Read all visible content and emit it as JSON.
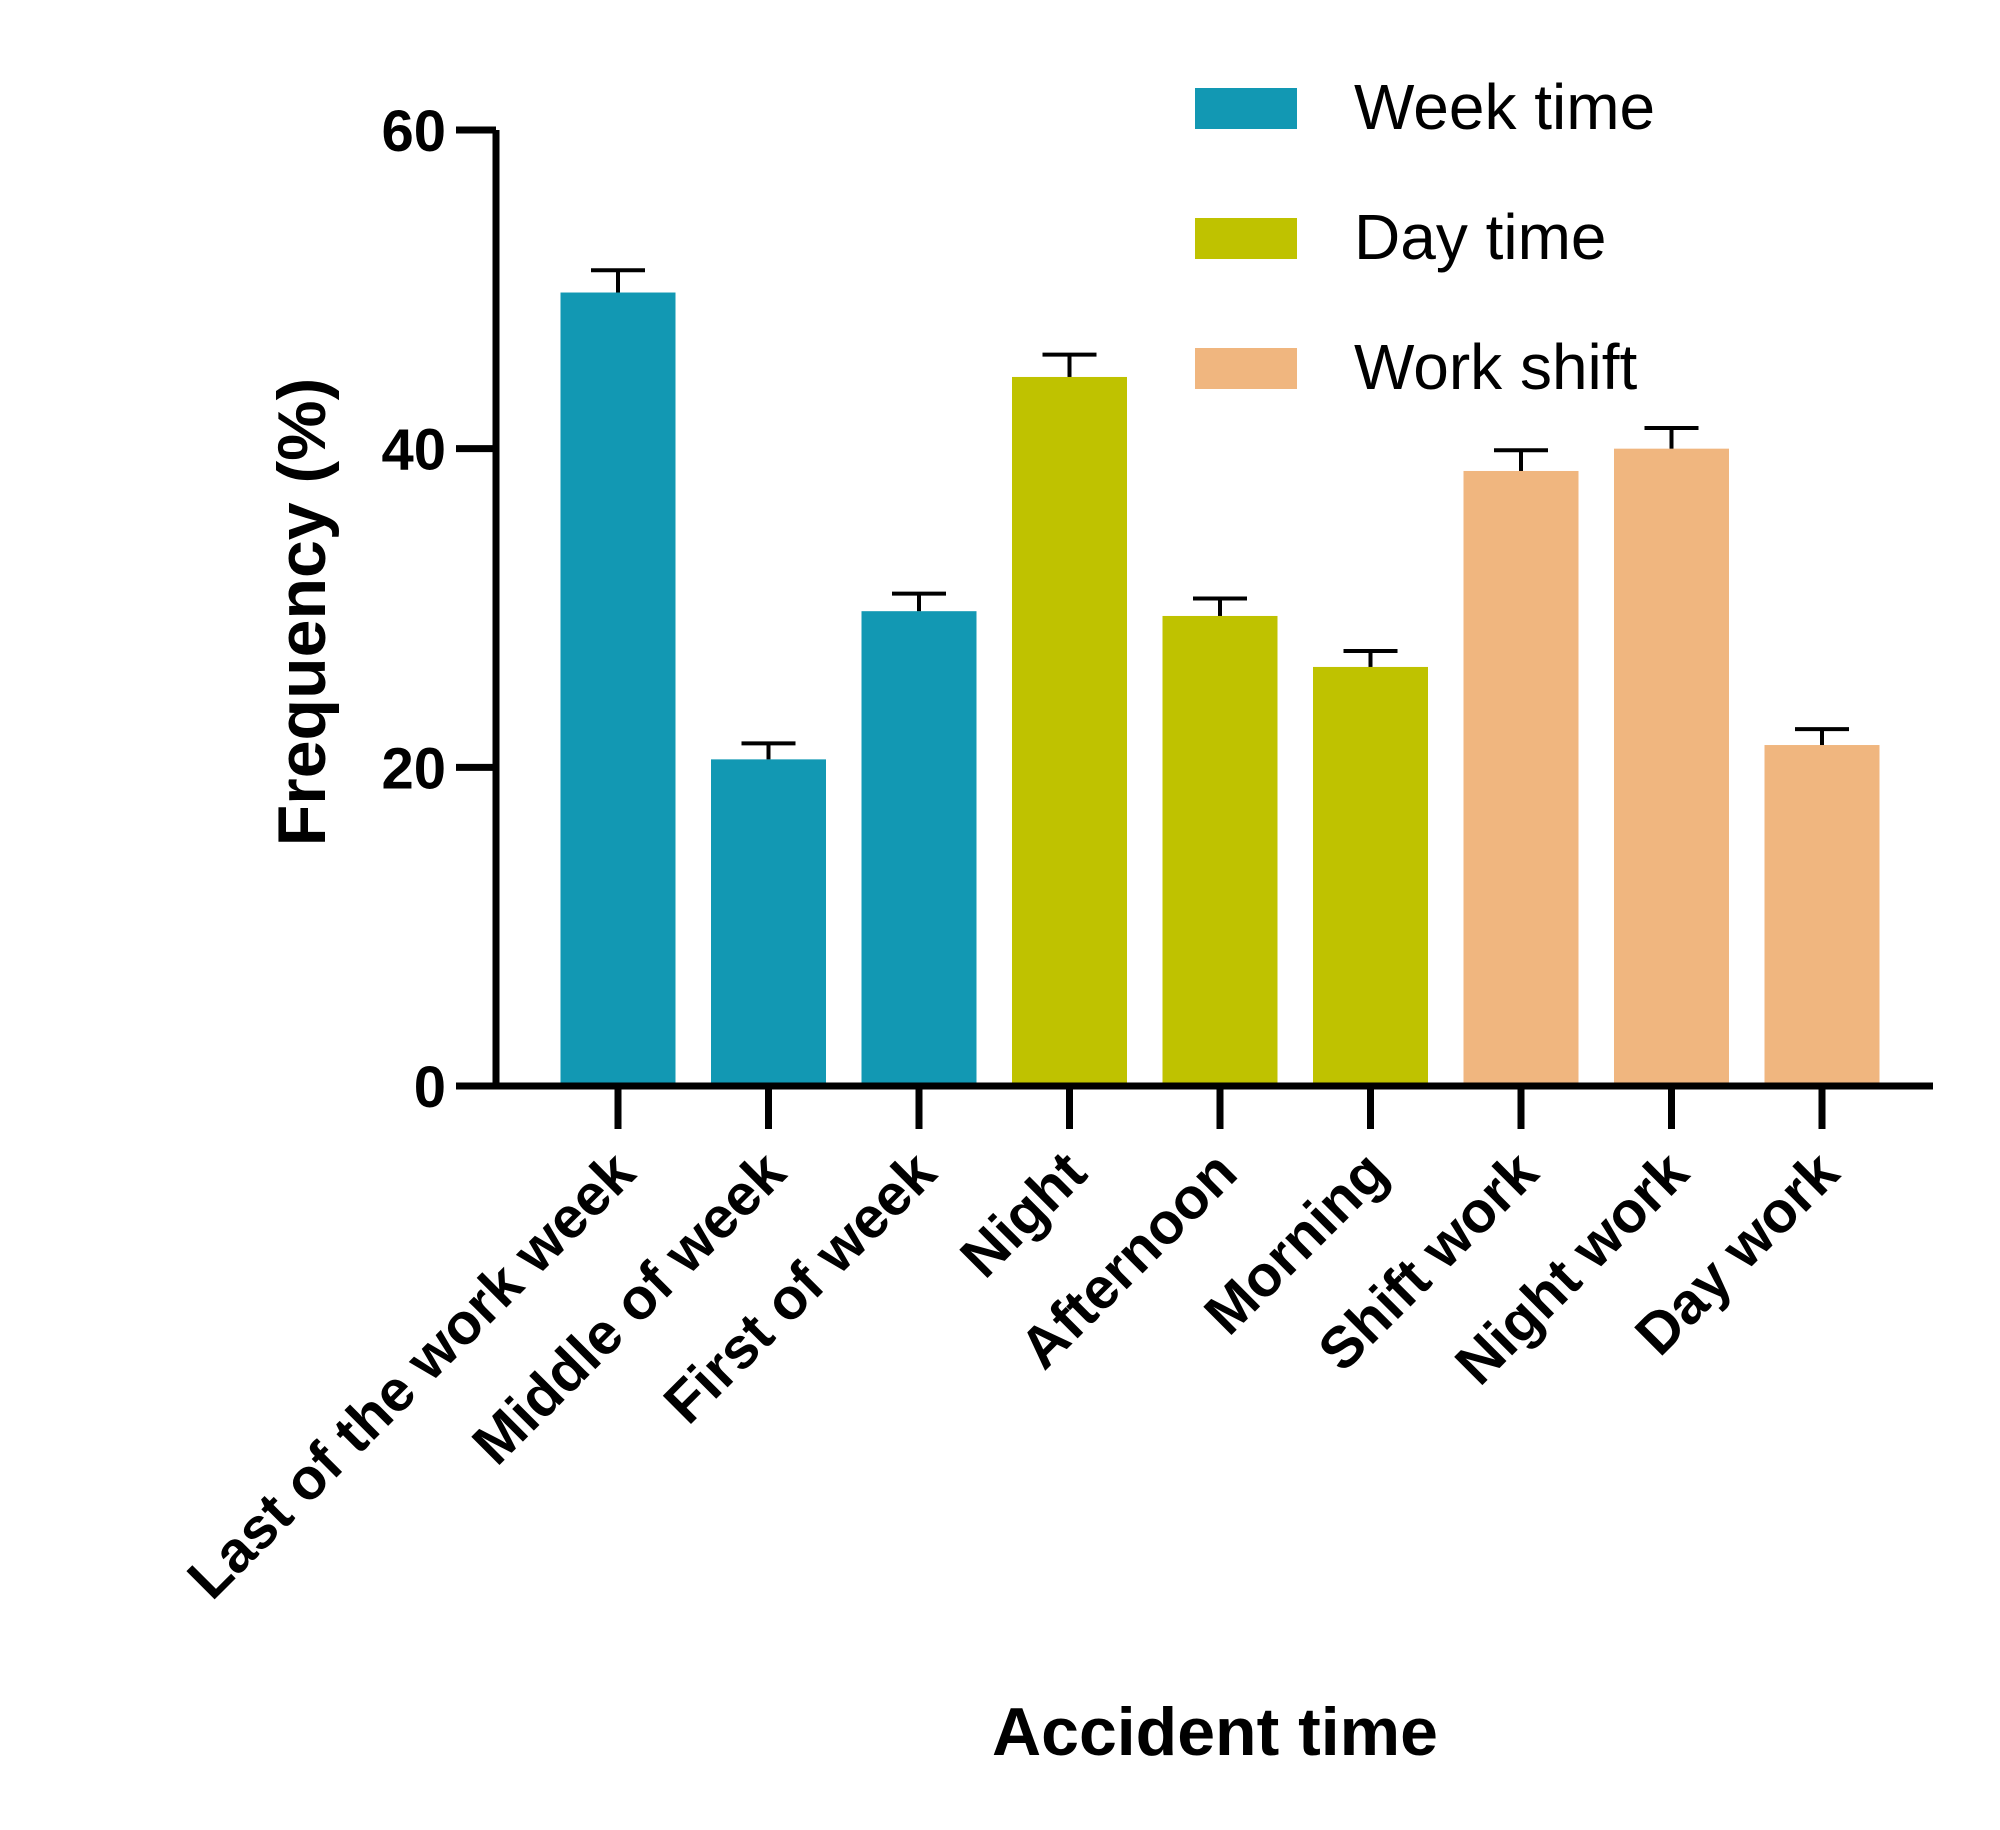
{
  "chart_data": {
    "type": "bar",
    "title": "",
    "xlabel": "Accident time",
    "ylabel": "Frequency (%)",
    "ylim": [
      0,
      60
    ],
    "yticks": [
      "0",
      "20",
      "40",
      "60"
    ],
    "grid": false,
    "legend_position": "top-right",
    "categories": [
      "Last of the work week",
      "Middle of week",
      "First of week",
      "Night",
      "Afternoon",
      "Morning",
      "Shift work",
      "Night work",
      "Day work"
    ],
    "groups": [
      {
        "name": "Week time",
        "color": "#1298b3",
        "categories": [
          "Last of the work week",
          "Middle of week",
          "First of week"
        ],
        "values": [
          49.8,
          20.5,
          29.8
        ],
        "errors": [
          1.4,
          1.0,
          1.1
        ]
      },
      {
        "name": "Day time",
        "color": "#bfc200",
        "categories": [
          "Night",
          "Afternoon",
          "Morning"
        ],
        "values": [
          44.5,
          29.5,
          26.3
        ],
        "errors": [
          1.4,
          1.1,
          1.0
        ]
      },
      {
        "name": "Work shift",
        "color": "#f0b67f",
        "categories": [
          "Shift work",
          "Night work",
          "Day work"
        ],
        "values": [
          38.6,
          40.0,
          21.4
        ],
        "errors": [
          1.3,
          1.3,
          1.0
        ]
      }
    ]
  }
}
